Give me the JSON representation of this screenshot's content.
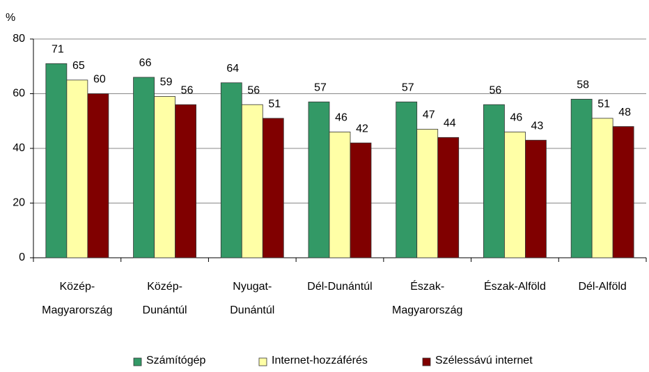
{
  "chart_data": {
    "type": "bar",
    "ylabel": "%",
    "categories": [
      [
        "Közép-",
        "Magyarország"
      ],
      [
        "Közép-",
        "Dunántúl"
      ],
      [
        "Nyugat-",
        "Dunántúl"
      ],
      [
        "Dél-Dunántúl"
      ],
      [
        "Észak-",
        "Magyarország"
      ],
      [
        "Észak-Alföld"
      ],
      [
        "Dél-Alföld"
      ]
    ],
    "series": [
      {
        "name": "Számítógép",
        "color": "#339966",
        "values": [
          71,
          66,
          64,
          57,
          57,
          56,
          58
        ]
      },
      {
        "name": "Internet-hozzáférés",
        "color": "#ffffa6",
        "values": [
          65,
          59,
          56,
          46,
          47,
          46,
          51
        ]
      },
      {
        "name": "Szélessávú internet",
        "color": "#800000",
        "values": [
          60,
          56,
          51,
          42,
          44,
          43,
          48
        ]
      }
    ],
    "ylim": [
      0,
      80
    ],
    "yticks": [
      0,
      20,
      40,
      60,
      80
    ],
    "grid": true
  }
}
